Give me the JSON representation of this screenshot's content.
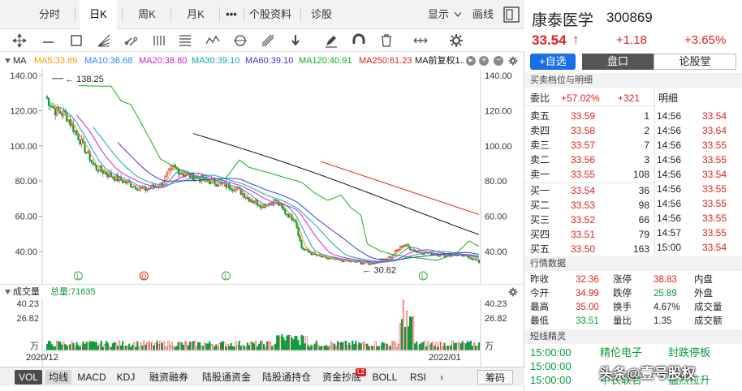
{
  "tabs": [
    "分时",
    "日K",
    "周K",
    "月K",
    "•••",
    "个股资料",
    "诊股",
    "显示",
    "画线"
  ],
  "ma_values": {
    "ma_label": "MA",
    "ma5": "MA5:33.89",
    "ma10": "MA10:36.68",
    "ma20": "MA20:38.80",
    "ma30": "MA30:39.10",
    "ma60": "MA60:39.10",
    "ma120": "MA120:40.91",
    "ma250": "MA250:61.23",
    "ma_extra": "MA前复权1.."
  },
  "colors": {
    "ma5": "#ff9900",
    "ma10": "#1f8fff",
    "ma20": "#d020d0",
    "ma30": "#10a8a8",
    "ma60": "#3a38d0",
    "ma120": "#10b020",
    "ma250": "#e02020",
    "maextra": "#111111",
    "up": "#e02020",
    "down": "#0a9a3a"
  },
  "y_ticks": [
    "140.00",
    "120.00",
    "100.00",
    "80.00",
    "60.00",
    "40.00"
  ],
  "high_label": "138.25",
  "low_label": "30.62",
  "markers": [
    "L",
    "Q",
    "L",
    "L"
  ],
  "volume": {
    "label": "成交量",
    "total": "总量:71635",
    "ticks": [
      "40.23",
      "26.82",
      "万"
    ]
  },
  "dates": [
    "2020/12",
    "2022/01"
  ],
  "bottom_tabs": [
    "VOL",
    "均线",
    "MACD",
    "KDJ",
    "融资融券",
    "陆股通资金",
    "陆股通持仓",
    "资金抄底",
    "BOLL",
    "RSI",
    "筹码"
  ],
  "bottom_badge": "L2",
  "stock": {
    "name": "康泰医学",
    "code": "300869",
    "price": "33.54",
    "arrow": "↑",
    "change": "+1.18",
    "pct": "+3.65%"
  },
  "buttons": {
    "add_fav": "+自选",
    "pankou": "盘口",
    "lungutang": "论股堂"
  },
  "orderbook_title": "买卖档位与明细",
  "weibi": {
    "label": "委比",
    "pct": "+57.02%",
    "num": "+321",
    "detail_label": "明细"
  },
  "asks": [
    {
      "label": "卖五",
      "price": "33.59",
      "vol": "1"
    },
    {
      "label": "卖四",
      "price": "33.58",
      "vol": "2"
    },
    {
      "label": "卖三",
      "price": "33.57",
      "vol": "7"
    },
    {
      "label": "卖二",
      "price": "33.56",
      "vol": "3"
    },
    {
      "label": "卖一",
      "price": "33.55",
      "vol": "108"
    }
  ],
  "bids": [
    {
      "label": "买一",
      "price": "33.54",
      "vol": "36"
    },
    {
      "label": "买二",
      "price": "33.53",
      "vol": "98"
    },
    {
      "label": "买三",
      "price": "33.52",
      "vol": "66"
    },
    {
      "label": "买四",
      "price": "33.51",
      "vol": "79"
    },
    {
      "label": "买五",
      "price": "33.50",
      "vol": "163"
    }
  ],
  "ticks": [
    {
      "time": "14:56",
      "price": "33.54",
      "c": "r"
    },
    {
      "time": "14:56",
      "price": "33.64",
      "c": "r"
    },
    {
      "time": "14:56",
      "price": "33.55",
      "c": "r"
    },
    {
      "time": "14:56",
      "price": "33.55",
      "c": "r"
    },
    {
      "time": "14:56",
      "price": "33.54",
      "c": "r"
    },
    {
      "time": "14:56",
      "price": "33.55",
      "c": "r"
    },
    {
      "time": "14:56",
      "price": "33.55",
      "c": "r"
    },
    {
      "time": "14:56",
      "price": "33.55",
      "c": "r"
    },
    {
      "time": "14:57",
      "price": "33.55",
      "c": "r"
    },
    {
      "time": "15:00",
      "price": "33.54",
      "c": "r"
    }
  ],
  "quote_title": "行情数据",
  "quote": [
    [
      "昨收",
      "32.36",
      "涨停",
      "38.83",
      "内盘",
      ""
    ],
    [
      "今开",
      "34.99",
      "跌停",
      "25.89",
      "外盘",
      ""
    ],
    [
      "最高",
      "35.00",
      "换手",
      "4.67%",
      "成交量",
      ""
    ],
    [
      "最低",
      "33.51",
      "量比",
      "1.35",
      "成交额",
      ""
    ]
  ],
  "news_title": "短线精灵",
  "news": [
    {
      "time": "15:00:00",
      "name": "精伦电子",
      "event": "封跌停板"
    },
    {
      "time": "15:00:00",
      "name": "",
      "event": ""
    },
    {
      "time": "15:00:00",
      "name": "中农联合",
      "event": "猛烈拉升"
    }
  ],
  "watermark": "头条@壹号股权"
}
